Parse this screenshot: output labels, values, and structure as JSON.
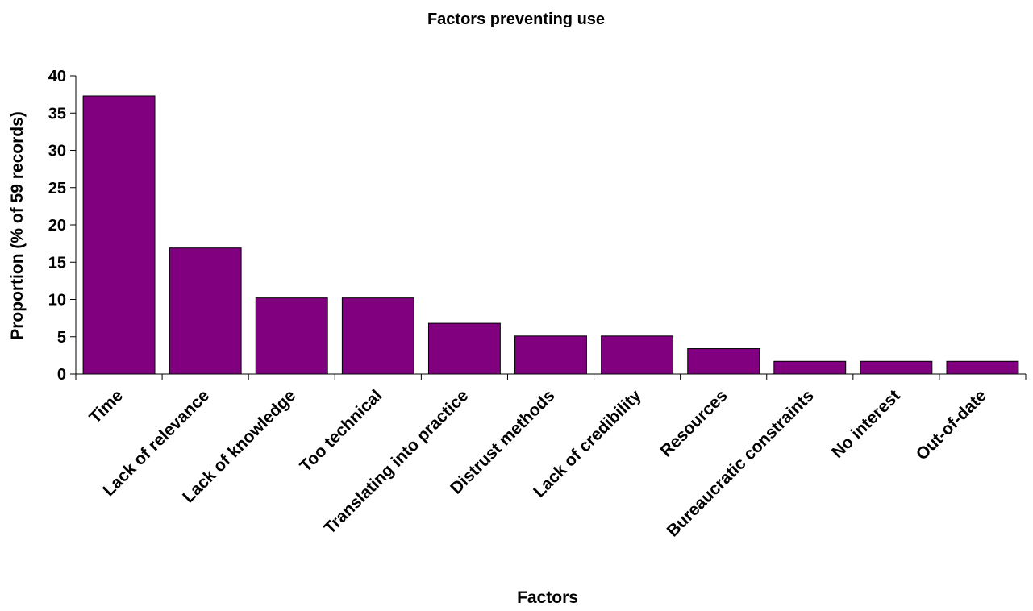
{
  "chart_data": {
    "type": "bar",
    "title": "Factors preventing use",
    "xlabel": "Factors",
    "ylabel": "Proportion (% of 59 records)",
    "categories": [
      "Time",
      "Lack of relevance",
      "Lack of knowledge",
      "Too technical",
      "Translating into practice",
      "Distrust methods",
      "Lack of credibility",
      "Resources",
      "Bureaucratic constraints",
      "No interest",
      "Out-of-date"
    ],
    "values": [
      37.3,
      16.9,
      10.2,
      10.2,
      6.8,
      5.1,
      5.1,
      3.4,
      1.7,
      1.7,
      1.7
    ],
    "ylim": [
      0,
      40
    ],
    "yticks": [
      "0",
      "5",
      "10",
      "15",
      "20",
      "25",
      "30",
      "35",
      "40"
    ],
    "grid": false,
    "bar_color": "#800080"
  }
}
